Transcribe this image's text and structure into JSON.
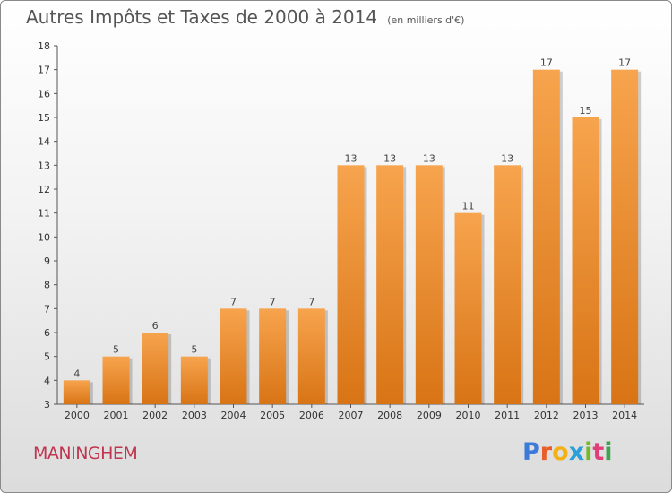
{
  "chart_data": {
    "type": "bar",
    "title": "Autres Impôts et Taxes de 2000 à 2014",
    "subtitle": "(en milliers d'€)",
    "categories": [
      "2000",
      "2001",
      "2002",
      "2003",
      "2004",
      "2005",
      "2006",
      "2007",
      "2008",
      "2009",
      "2010",
      "2011",
      "2012",
      "2013",
      "2014"
    ],
    "values": [
      4,
      5,
      6,
      5,
      7,
      7,
      7,
      13,
      13,
      13,
      11,
      13,
      17,
      15,
      17
    ],
    "ylim": [
      3,
      18
    ],
    "yticks": [
      3,
      4,
      5,
      6,
      7,
      8,
      9,
      10,
      11,
      12,
      13,
      14,
      15,
      16,
      17,
      18
    ],
    "xlabel": "",
    "ylabel": "",
    "grid": false,
    "colors": {
      "bar_light": "#f7a44e",
      "bar_dark": "#d87415"
    }
  },
  "footer": {
    "commune": "MANINGHEM",
    "logo_letters": [
      {
        "ch": "P",
        "color": "#3d7bd9"
      },
      {
        "ch": "r",
        "color": "#e85d2a"
      },
      {
        "ch": "o",
        "color": "#f2b118"
      },
      {
        "ch": "x",
        "color": "#2a9fd9"
      },
      {
        "ch": "i",
        "color": "#77b82a"
      },
      {
        "ch": "t",
        "color": "#e03f7a"
      },
      {
        "ch": "i",
        "color": "#3fa34d"
      }
    ]
  }
}
